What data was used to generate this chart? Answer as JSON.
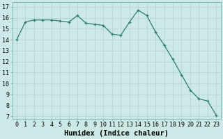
{
  "x": [
    0,
    1,
    2,
    3,
    4,
    5,
    6,
    7,
    8,
    9,
    10,
    11,
    12,
    13,
    14,
    15,
    16,
    17,
    18,
    19,
    20,
    21,
    22,
    23
  ],
  "y": [
    14.0,
    15.6,
    15.8,
    15.8,
    15.8,
    15.7,
    15.6,
    16.2,
    15.5,
    15.4,
    15.3,
    14.5,
    14.4,
    15.6,
    16.7,
    16.2,
    14.7,
    13.5,
    12.2,
    10.8,
    9.4,
    8.6,
    8.4,
    7.1
  ],
  "line_color": "#2e7d6e",
  "marker": "+",
  "bg_color": "#cce9e7",
  "grid_color": "#b8d8d6",
  "xlabel": "Humidex (Indice chaleur)",
  "ylabel_ticks": [
    7,
    8,
    9,
    10,
    11,
    12,
    13,
    14,
    15,
    16,
    17
  ],
  "ylim": [
    6.8,
    17.4
  ],
  "xlim": [
    -0.5,
    23.5
  ],
  "tick_fontsize": 6.0,
  "xlabel_fontsize": 7.5
}
